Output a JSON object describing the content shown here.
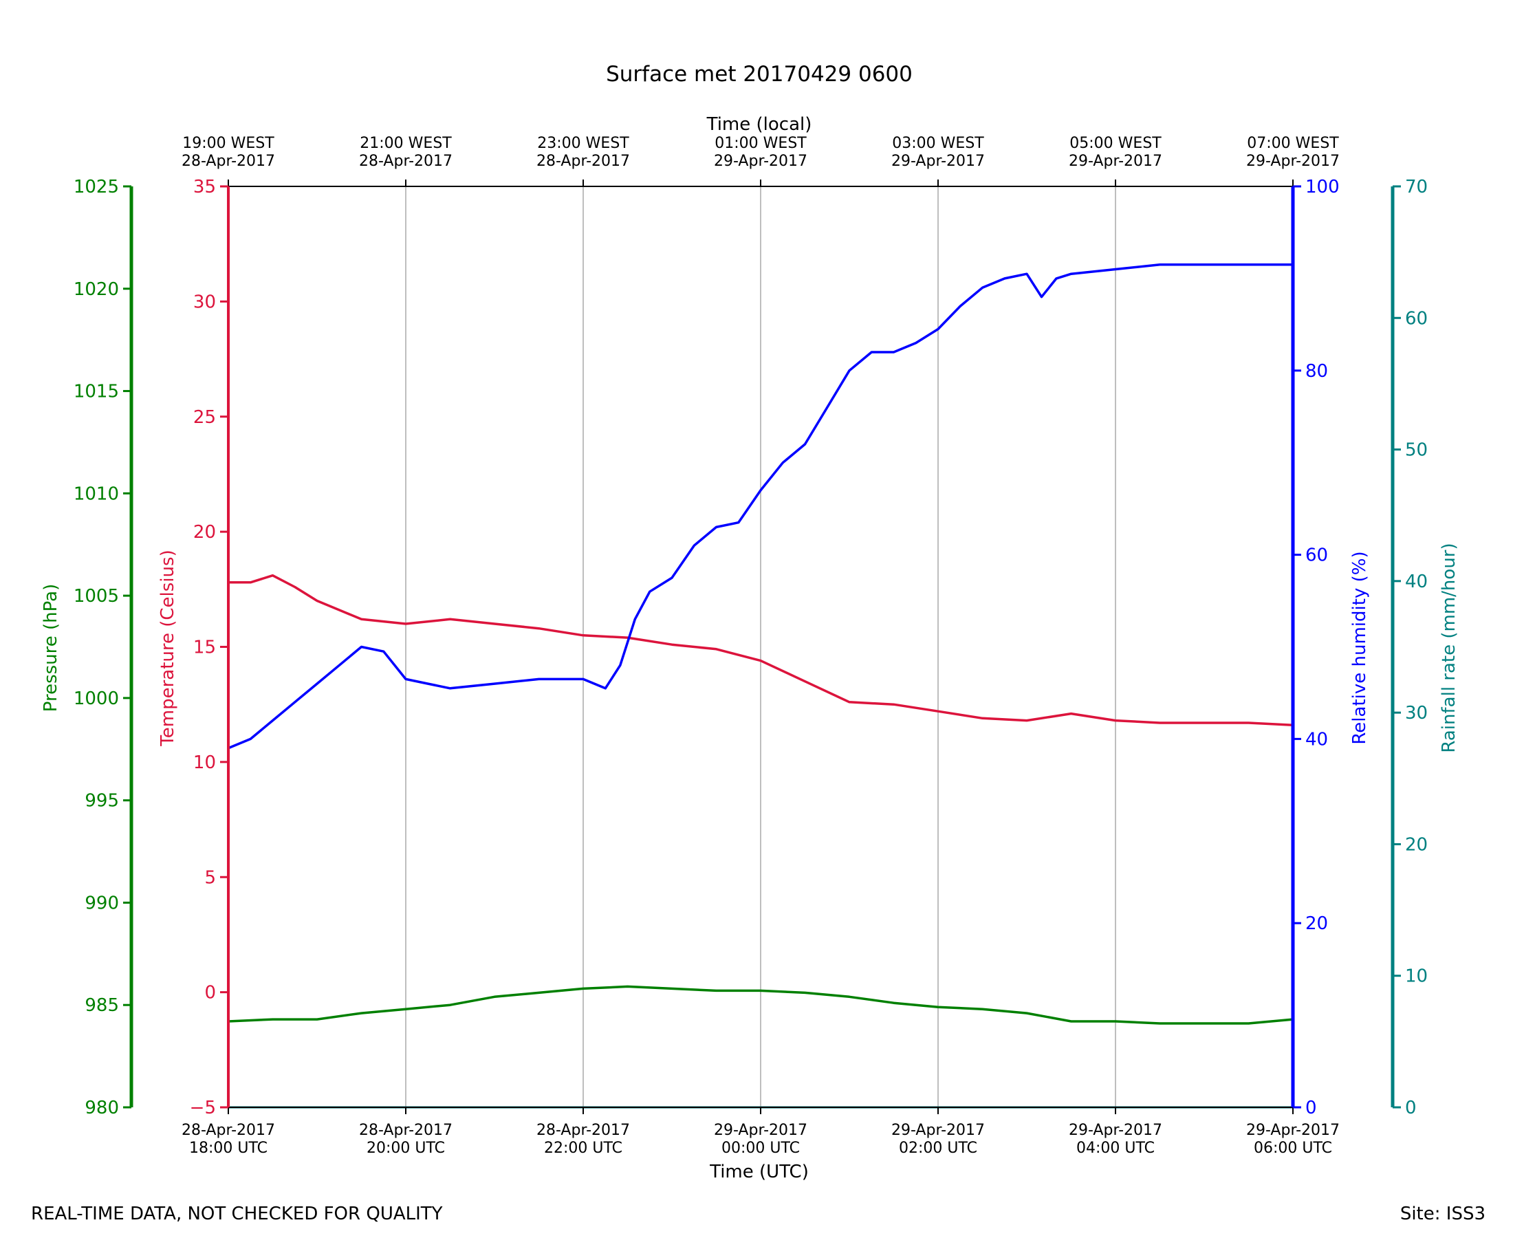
{
  "title": "Surface met 20170429 0600",
  "footer": {
    "left": "REAL-TIME DATA, NOT CHECKED FOR QUALITY",
    "right": "Site: ISS3"
  },
  "colors": {
    "temperature": "#dc143c",
    "humidity": "#0000ff",
    "pressure": "#008000",
    "rainfall": "#008080",
    "grid": "#a9a9a9",
    "frame": "#000000"
  },
  "chart_data": {
    "type": "line",
    "title": "Surface met 20170429 0600",
    "grid": true,
    "x_top": {
      "label": "Time (local)",
      "ticks": [
        {
          "line1": "19:00 WEST",
          "line2": "28-Apr-2017"
        },
        {
          "line1": "21:00 WEST",
          "line2": "28-Apr-2017"
        },
        {
          "line1": "23:00 WEST",
          "line2": "28-Apr-2017"
        },
        {
          "line1": "01:00 WEST",
          "line2": "29-Apr-2017"
        },
        {
          "line1": "03:00 WEST",
          "line2": "29-Apr-2017"
        },
        {
          "line1": "05:00 WEST",
          "line2": "29-Apr-2017"
        },
        {
          "line1": "07:00 WEST",
          "line2": "29-Apr-2017"
        }
      ]
    },
    "x_bottom": {
      "label": "Time (UTC)",
      "range": [
        "2017-04-28 18:00",
        "2017-04-29 06:00"
      ],
      "ticks": [
        {
          "line1": "28-Apr-2017",
          "line2": "18:00 UTC"
        },
        {
          "line1": "28-Apr-2017",
          "line2": "20:00 UTC"
        },
        {
          "line1": "28-Apr-2017",
          "line2": "22:00 UTC"
        },
        {
          "line1": "29-Apr-2017",
          "line2": "00:00 UTC"
        },
        {
          "line1": "29-Apr-2017",
          "line2": "02:00 UTC"
        },
        {
          "line1": "29-Apr-2017",
          "line2": "04:00 UTC"
        },
        {
          "line1": "29-Apr-2017",
          "line2": "06:00 UTC"
        }
      ]
    },
    "axes": {
      "pressure": {
        "label": "Pressure (hPa)",
        "ylim": [
          980,
          1025
        ],
        "ticks": [
          "980",
          "985",
          "990",
          "995",
          "1000",
          "1005",
          "1010",
          "1015",
          "1020",
          "1025"
        ]
      },
      "temperature": {
        "label": "Temperature (Celsius)",
        "ylim": [
          -5,
          35
        ],
        "ticks": [
          "−5",
          "0",
          "5",
          "10",
          "15",
          "20",
          "25",
          "30",
          "35"
        ]
      },
      "humidity": {
        "label": "Relative humidity (%)",
        "ylim": [
          0,
          100
        ],
        "ticks": [
          "0",
          "20",
          "40",
          "60",
          "80",
          "100"
        ]
      },
      "rainfall": {
        "label": "Rainfall rate (mm/hour)",
        "ylim": [
          0,
          70
        ],
        "ticks": [
          "0",
          "10",
          "20",
          "30",
          "40",
          "50",
          "60",
          "70"
        ]
      }
    },
    "series": [
      {
        "key": "temperature",
        "axis": "temperature",
        "x": [
          "2017-04-28 18:00",
          "2017-04-28 18:15",
          "2017-04-28 18:30",
          "2017-04-28 18:45",
          "2017-04-28 19:00",
          "2017-04-28 19:30",
          "2017-04-28 20:00",
          "2017-04-28 20:30",
          "2017-04-28 21:00",
          "2017-04-28 21:30",
          "2017-04-28 22:00",
          "2017-04-28 22:30",
          "2017-04-28 23:00",
          "2017-04-28 23:30",
          "2017-04-29 00:00",
          "2017-04-29 00:30",
          "2017-04-29 01:00",
          "2017-04-29 01:30",
          "2017-04-29 02:00",
          "2017-04-29 02:30",
          "2017-04-29 03:00",
          "2017-04-29 03:30",
          "2017-04-29 04:00",
          "2017-04-29 04:30",
          "2017-04-29 05:00",
          "2017-04-29 05:30",
          "2017-04-29 06:00"
        ],
        "values": [
          17.8,
          17.8,
          18.1,
          17.6,
          17.0,
          16.2,
          16.0,
          16.2,
          16.0,
          15.8,
          15.5,
          15.4,
          15.1,
          14.9,
          14.4,
          13.5,
          12.6,
          12.5,
          12.2,
          11.9,
          11.8,
          12.1,
          11.8,
          11.7,
          11.7,
          11.7,
          11.6
        ]
      },
      {
        "key": "humidity",
        "axis": "humidity",
        "x": [
          "2017-04-28 18:00",
          "2017-04-28 18:15",
          "2017-04-28 18:30",
          "2017-04-28 18:45",
          "2017-04-28 19:00",
          "2017-04-28 19:15",
          "2017-04-28 19:30",
          "2017-04-28 19:45",
          "2017-04-28 20:00",
          "2017-04-28 20:15",
          "2017-04-28 20:30",
          "2017-04-28 21:00",
          "2017-04-28 21:30",
          "2017-04-28 22:00",
          "2017-04-28 22:15",
          "2017-04-28 22:25",
          "2017-04-28 22:35",
          "2017-04-28 22:45",
          "2017-04-28 23:00",
          "2017-04-28 23:15",
          "2017-04-28 23:30",
          "2017-04-28 23:45",
          "2017-04-29 00:00",
          "2017-04-29 00:15",
          "2017-04-29 00:30",
          "2017-04-29 00:45",
          "2017-04-29 01:00",
          "2017-04-29 01:15",
          "2017-04-29 01:30",
          "2017-04-29 01:45",
          "2017-04-29 02:00",
          "2017-04-29 02:15",
          "2017-04-29 02:30",
          "2017-04-29 02:45",
          "2017-04-29 03:00",
          "2017-04-29 03:10",
          "2017-04-29 03:20",
          "2017-04-29 03:30",
          "2017-04-29 04:00",
          "2017-04-29 04:30",
          "2017-04-29 05:00",
          "2017-04-29 06:00"
        ],
        "values": [
          39,
          40,
          42,
          44,
          46,
          48,
          50,
          49.5,
          46.5,
          46,
          45.5,
          46,
          46.5,
          46.5,
          45.5,
          48,
          53,
          56,
          57.5,
          61,
          63,
          63.5,
          67,
          70,
          72,
          76,
          80,
          82,
          82,
          83,
          84.5,
          87,
          89,
          90,
          90.5,
          88,
          90,
          90.5,
          91,
          91.5,
          91.5,
          91.5
        ]
      },
      {
        "key": "pressure",
        "axis": "pressure",
        "x": [
          "2017-04-28 18:00",
          "2017-04-28 18:30",
          "2017-04-28 19:00",
          "2017-04-28 19:30",
          "2017-04-28 20:00",
          "2017-04-28 20:30",
          "2017-04-28 21:00",
          "2017-04-28 21:30",
          "2017-04-28 22:00",
          "2017-04-28 22:30",
          "2017-04-28 23:00",
          "2017-04-28 23:30",
          "2017-04-29 00:00",
          "2017-04-29 00:30",
          "2017-04-29 01:00",
          "2017-04-29 01:30",
          "2017-04-29 02:00",
          "2017-04-29 02:30",
          "2017-04-29 03:00",
          "2017-04-29 03:30",
          "2017-04-29 04:00",
          "2017-04-29 04:30",
          "2017-04-29 05:00",
          "2017-04-29 05:30",
          "2017-04-29 06:00"
        ],
        "values": [
          984.2,
          984.3,
          984.3,
          984.6,
          984.8,
          985.0,
          985.4,
          985.6,
          985.8,
          985.9,
          985.8,
          985.7,
          985.7,
          985.6,
          985.4,
          985.1,
          984.9,
          984.8,
          984.6,
          984.2,
          984.2,
          984.1,
          984.1,
          984.1,
          984.3
        ]
      },
      {
        "key": "rainfall",
        "axis": "rainfall",
        "x": [
          "2017-04-28 18:00",
          "2017-04-29 06:00"
        ],
        "values": [
          0,
          0
        ]
      }
    ]
  }
}
